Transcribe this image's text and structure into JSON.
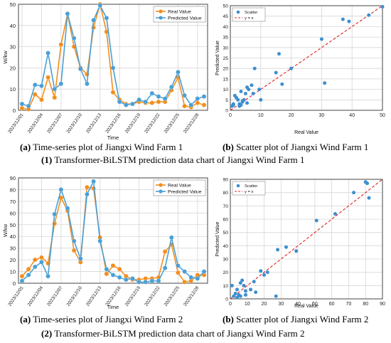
{
  "captions": {
    "a1": {
      "letter": "(a)",
      "text": "Time-series plot of Jiangxi Wind Farm 1"
    },
    "b1": {
      "letter": "(b)",
      "text": "Scatter plot of Jiangxi Wind Farm 1"
    },
    "g1": {
      "num": "(1)",
      "text": "Transformer-BiLSTM prediction data chart of Jiangxi Wind Farm 1"
    },
    "a2": {
      "letter": "(a)",
      "text": "Time-series plot of Jiangxi Wind Farm 2"
    },
    "b2": {
      "letter": "(b)",
      "text": "Scatter plot of Jiangxi Wind Farm 2"
    },
    "g2": {
      "num": "(2)",
      "text": "Transformer-BiLSTM prediction data chart of Jiangxi Wind Farm 2"
    }
  },
  "colors": {
    "real": "#F28E1C",
    "pred": "#4A9FD6",
    "scatter": "#3C8FCF",
    "ref": "#E02020",
    "grid": "#D6D6D6"
  },
  "chart_data": [
    {
      "type": "line",
      "xlabel": "Time",
      "ylabel": "W/kw",
      "ylim": [
        0,
        50
      ],
      "yticks": [
        0,
        10,
        20,
        30,
        40,
        50
      ],
      "xticks": [
        "2023/12/01",
        "2023/12/04",
        "2023/12/07",
        "2023/12/10",
        "2023/12/13",
        "2023/12/16",
        "2023/12/19",
        "2023/12/22",
        "2023/12/25",
        "2023/12/28"
      ],
      "x_count": 29,
      "grid": true,
      "legend": "top-right",
      "series": [
        {
          "name": "Real Value",
          "values": [
            1,
            0.5,
            7.5,
            5,
            15.5,
            6,
            31,
            45.5,
            30,
            20,
            17,
            39,
            50,
            37,
            8.5,
            5,
            3,
            3,
            4,
            3.5,
            3.5,
            4,
            4,
            9.5,
            15.5,
            2,
            1.5,
            3.5,
            2.5
          ]
        },
        {
          "name": "Predicted Value",
          "values": [
            3,
            2,
            12,
            11.5,
            27,
            10,
            12.5,
            45.5,
            34,
            19.5,
            12.5,
            42.5,
            49.5,
            43.5,
            20,
            4,
            2.5,
            3,
            5,
            4,
            8,
            6.5,
            5.5,
            11,
            18,
            7,
            2.5,
            5.5,
            6.5
          ]
        }
      ]
    },
    {
      "type": "scatter",
      "xlabel": "Real Value",
      "ylabel": "Predicted Value",
      "xlim": [
        0,
        50
      ],
      "ylim": [
        0,
        50
      ],
      "xticks": [
        0,
        10,
        20,
        30,
        40,
        50
      ],
      "yticks": [
        0,
        5,
        10,
        15,
        20,
        25,
        30,
        35,
        40,
        45,
        50
      ],
      "grid": true,
      "legend": "top-left",
      "series": [
        {
          "name": "Scatter",
          "points": [
            [
              0.5,
              2
            ],
            [
              1,
              3
            ],
            [
              1,
              2.5
            ],
            [
              1.5,
              7
            ],
            [
              2,
              6
            ],
            [
              2.5,
              5
            ],
            [
              3,
              2
            ],
            [
              3,
              3
            ],
            [
              3.5,
              2.5
            ],
            [
              3.5,
              9
            ],
            [
              4,
              4
            ],
            [
              4,
              4.5
            ],
            [
              4.5,
              5
            ],
            [
              5,
              8
            ],
            [
              5.5,
              11
            ],
            [
              5.5,
              3.5
            ],
            [
              6,
              10
            ],
            [
              7,
              12
            ],
            [
              7.5,
              8
            ],
            [
              8,
              20
            ],
            [
              9.5,
              10
            ],
            [
              10,
              5
            ],
            [
              15,
              18
            ],
            [
              16,
              27
            ],
            [
              17,
              12.5
            ],
            [
              20,
              20
            ],
            [
              30,
              34
            ],
            [
              31,
              13
            ],
            [
              37,
              43.5
            ],
            [
              39,
              42.5
            ],
            [
              45.5,
              45.5
            ],
            [
              50,
              49.5
            ]
          ]
        },
        {
          "name": "y = x",
          "points": [
            [
              0,
              0
            ],
            [
              50,
              50
            ]
          ]
        }
      ]
    },
    {
      "type": "line",
      "xlabel": "Time",
      "ylabel": "W/kw",
      "ylim": [
        0,
        90
      ],
      "yticks": [
        0,
        10,
        20,
        30,
        40,
        50,
        60,
        70,
        80,
        90
      ],
      "xticks": [
        "2023/12/01",
        "2023/12/04",
        "2023/12/07",
        "2023/12/10",
        "2023/12/13",
        "2023/12/16",
        "2023/12/19",
        "2023/12/22",
        "2023/12/25",
        "2023/12/28"
      ],
      "x_count": 29,
      "grid": true,
      "legend": "top-right",
      "series": [
        {
          "name": "Real Value",
          "values": [
            6,
            12,
            20,
            22,
            17,
            51,
            73,
            62,
            28,
            18,
            82,
            81,
            39,
            8,
            15,
            12,
            6,
            3,
            3,
            4,
            4,
            5,
            27,
            33,
            9,
            1,
            2,
            7,
            7
          ]
        },
        {
          "name": "Predicted Value",
          "values": [
            2,
            7,
            14,
            18,
            6,
            59,
            80,
            64,
            36,
            21,
            76,
            87,
            36,
            12,
            7,
            5,
            3,
            4,
            1,
            1,
            2,
            2,
            13,
            39,
            15,
            10,
            5,
            4,
            10
          ]
        }
      ]
    },
    {
      "type": "scatter",
      "xlabel": "Real Value",
      "ylabel": "Predicted Value",
      "xlim": [
        0,
        90
      ],
      "ylim": [
        0,
        90
      ],
      "xticks": [
        0,
        10,
        20,
        30,
        40,
        50,
        60,
        70,
        80,
        90
      ],
      "yticks": [
        0,
        10,
        20,
        30,
        40,
        50,
        60,
        70,
        80,
        90
      ],
      "grid": true,
      "legend": "top-left",
      "series": [
        {
          "name": "Scatter",
          "points": [
            [
              1,
              10
            ],
            [
              2,
              2
            ],
            [
              3,
              4
            ],
            [
              4,
              7
            ],
            [
              4,
              1
            ],
            [
              5,
              3
            ],
            [
              6,
              2
            ],
            [
              6,
              12
            ],
            [
              7,
              14
            ],
            [
              8,
              10
            ],
            [
              9,
              3
            ],
            [
              9,
              6
            ],
            [
              12,
              7
            ],
            [
              14,
              13
            ],
            [
              15,
              5
            ],
            [
              18,
              21
            ],
            [
              20,
              18
            ],
            [
              22,
              20
            ],
            [
              27,
              2
            ],
            [
              28,
              37
            ],
            [
              33,
              39
            ],
            [
              39,
              36
            ],
            [
              51,
              59
            ],
            [
              62,
              64
            ],
            [
              73,
              80
            ],
            [
              80,
              88
            ],
            [
              81,
              87
            ],
            [
              82,
              76
            ]
          ]
        },
        {
          "name": "y = x",
          "points": [
            [
              0,
              0
            ],
            [
              90,
              90
            ]
          ]
        }
      ]
    }
  ]
}
